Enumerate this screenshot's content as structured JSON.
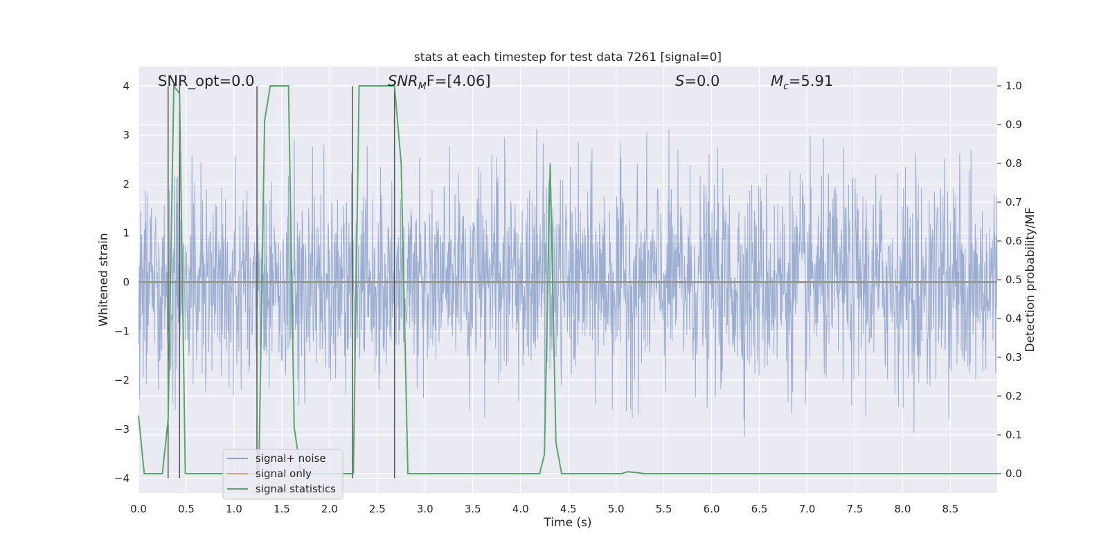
{
  "chart_data": {
    "type": "line",
    "title": "stats at each timestep for test data 7261 [signal=0]",
    "xlabel": "Time (s)",
    "ylabel": "Whitened strain",
    "y2label": "Detection probability/MF",
    "xlim": [
      0.0,
      8.99
    ],
    "ylim": [
      -4.3,
      4.4
    ],
    "y2lim": [
      -0.05,
      1.05
    ],
    "xticks": [
      "0.0",
      "0.5",
      "1.0",
      "1.5",
      "2.0",
      "2.5",
      "3.0",
      "3.5",
      "4.0",
      "4.5",
      "5.0",
      "5.5",
      "6.0",
      "6.5",
      "7.0",
      "7.5",
      "8.0",
      "8.5"
    ],
    "yticks": [
      "4",
      "3",
      "2",
      "1",
      "0",
      "−1",
      "−2",
      "−3",
      "−4"
    ],
    "y2ticks": [
      "1.0",
      "0.9",
      "0.8",
      "0.7",
      "0.6",
      "0.5",
      "0.4",
      "0.3",
      "0.2",
      "0.1",
      "0.0"
    ],
    "grid": true,
    "legend_position": "lower-left",
    "annotations": {
      "snr_opt": "SNR_opt=0.0",
      "snr_mf_main": "SNR",
      "snr_mf_sub": "M",
      "snr_mf_rest": "F=[4.06]",
      "s_main": "S",
      "s_rest": "=0.0",
      "mc_main": "M",
      "mc_sub": "c",
      "mc_rest": "=5.91"
    },
    "colors": {
      "noise": "#4c72b0",
      "signal": "#dd8452",
      "stats": "#55a868",
      "vline": "#555555",
      "background": "#eaeaf2",
      "zero_line": "#999999"
    },
    "series": [
      {
        "name": "signal+ noise",
        "axis": "left",
        "x_range": [
          0.0,
          8.99
        ],
        "description_envelope": [
          [
            0.0,
            2.8,
            -2.8
          ],
          [
            0.5,
            2.9,
            -2.6
          ],
          [
            1.0,
            2.6,
            -3.2
          ],
          [
            1.5,
            3.3,
            -2.9
          ],
          [
            2.0,
            3.0,
            -2.9
          ],
          [
            2.5,
            3.2,
            -3.5
          ],
          [
            3.0,
            3.4,
            -3.1
          ],
          [
            3.5,
            3.2,
            -3.9
          ],
          [
            4.0,
            3.3,
            -3.5
          ],
          [
            4.5,
            3.6,
            -3.3
          ],
          [
            5.0,
            3.5,
            -3.3
          ],
          [
            5.5,
            3.8,
            -3.3
          ],
          [
            6.0,
            3.9,
            -3.2
          ],
          [
            6.5,
            3.4,
            -3.4
          ],
          [
            7.0,
            3.6,
            -3.8
          ],
          [
            7.5,
            3.7,
            -3.2
          ],
          [
            8.0,
            3.3,
            -3.1
          ],
          [
            8.5,
            3.2,
            -3.1
          ],
          [
            8.99,
            2.6,
            -3.5
          ]
        ]
      },
      {
        "name": "signal only",
        "axis": "left",
        "x": [
          0.0,
          8.99
        ],
        "y": [
          0.0,
          0.0
        ]
      },
      {
        "name": "signal statistics",
        "axis": "right",
        "x": [
          0.0,
          0.06,
          0.12,
          0.25,
          0.31,
          0.37,
          0.43,
          0.49,
          0.55,
          0.62,
          0.8,
          1.0,
          1.2,
          1.26,
          1.32,
          1.38,
          1.5,
          1.57,
          1.63,
          1.7,
          1.8,
          2.0,
          2.2,
          2.25,
          2.31,
          2.45,
          2.6,
          2.68,
          2.75,
          2.82,
          3.0,
          3.5,
          4.0,
          4.2,
          4.25,
          4.31,
          4.37,
          4.43,
          4.6,
          5.0,
          5.06,
          5.12,
          5.2,
          5.3,
          6.0,
          7.0,
          8.0,
          8.99
        ],
        "y": [
          0.15,
          0.0,
          0.0,
          0.0,
          0.14,
          1.0,
          0.98,
          0.0,
          0.0,
          0.0,
          0.0,
          0.0,
          0.0,
          0.0,
          0.91,
          1.0,
          1.0,
          1.0,
          0.12,
          0.0,
          0.0,
          0.0,
          0.0,
          0.0,
          1.0,
          1.0,
          1.0,
          1.0,
          0.8,
          0.0,
          0.0,
          0.0,
          0.0,
          0.0,
          0.05,
          0.8,
          0.08,
          0.0,
          0.0,
          0.0,
          0.0,
          0.005,
          0.003,
          0.0,
          0.0,
          0.0,
          0.0,
          0.0
        ]
      }
    ],
    "vertical_lines": [
      {
        "x": 0.31,
        "ymin": -4.0,
        "ymax": 4.0
      },
      {
        "x": 0.43,
        "ymin": -4.0,
        "ymax": 4.0
      },
      {
        "x": 1.24,
        "ymin": -4.0,
        "ymax": 4.0
      },
      {
        "x": 2.24,
        "ymin": -4.0,
        "ymax": 4.0
      },
      {
        "x": 2.68,
        "ymin": -4.0,
        "ymax": 4.0
      }
    ]
  }
}
